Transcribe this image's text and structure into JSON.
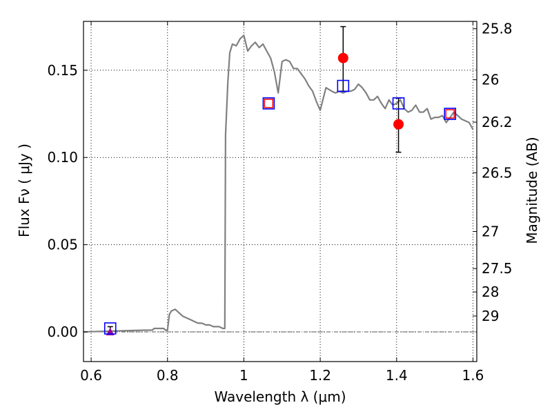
{
  "chart_data": {
    "type": "line",
    "xlabel": "Wavelength  λ (μm)",
    "ylabel": "Flux  Fν  ( μJy )",
    "ylabel_right": "Magnitude (AB)",
    "xlim": [
      0.58,
      1.61
    ],
    "ylim": [
      -0.017,
      0.178
    ],
    "grid": true,
    "x_ticks": [
      {
        "value": 0.6,
        "label": "0.6"
      },
      {
        "value": 0.8,
        "label": "0.8"
      },
      {
        "value": 1.0,
        "label": "1"
      },
      {
        "value": 1.2,
        "label": "1.2"
      },
      {
        "value": 1.4,
        "label": "1.4"
      },
      {
        "value": 1.6,
        "label": "1.6"
      }
    ],
    "y_ticks": [
      {
        "value": 0.0,
        "label": "0.00"
      },
      {
        "value": 0.05,
        "label": "0.05"
      },
      {
        "value": 0.1,
        "label": "0.10"
      },
      {
        "value": 0.15,
        "label": "0.15"
      }
    ],
    "right_ticks": [
      {
        "value": 25.8,
        "label": "25.8"
      },
      {
        "value": 26.0,
        "label": "26"
      },
      {
        "value": 26.2,
        "label": "26.2"
      },
      {
        "value": 26.5,
        "label": "26.5"
      },
      {
        "value": 27.0,
        "label": "27"
      },
      {
        "value": 27.5,
        "label": "27.5"
      },
      {
        "value": 28.0,
        "label": "28"
      },
      {
        "value": 29.0,
        "label": "29"
      }
    ],
    "model_spectrum": {
      "color": "#808080",
      "x": [
        0.58,
        0.74,
        0.745,
        0.76,
        0.765,
        0.77,
        0.79,
        0.795,
        0.8,
        0.805,
        0.81,
        0.82,
        0.83,
        0.84,
        0.85,
        0.86,
        0.87,
        0.88,
        0.89,
        0.9,
        0.91,
        0.92,
        0.93,
        0.935,
        0.945,
        0.95,
        0.952,
        0.958,
        0.963,
        0.97,
        0.98,
        0.99,
        1.0,
        1.01,
        1.02,
        1.03,
        1.04,
        1.05,
        1.06,
        1.07,
        1.08,
        1.09,
        1.095,
        1.1,
        1.11,
        1.12,
        1.13,
        1.14,
        1.15,
        1.16,
        1.17,
        1.18,
        1.19,
        1.2,
        1.215,
        1.23,
        1.24,
        1.25,
        1.26,
        1.27,
        1.28,
        1.29,
        1.3,
        1.31,
        1.32,
        1.33,
        1.34,
        1.35,
        1.36,
        1.37,
        1.38,
        1.39,
        1.4,
        1.41,
        1.42,
        1.43,
        1.44,
        1.45,
        1.46,
        1.47,
        1.48,
        1.49,
        1.5,
        1.51,
        1.52,
        1.53,
        1.54,
        1.55,
        1.56,
        1.57,
        1.58,
        1.59,
        1.6
      ],
      "y": [
        0.0,
        0.001,
        0.001,
        0.001,
        0.002,
        0.002,
        0.002,
        0.001,
        0.001,
        0.01,
        0.012,
        0.013,
        0.011,
        0.009,
        0.008,
        0.007,
        0.006,
        0.005,
        0.005,
        0.004,
        0.004,
        0.003,
        0.003,
        0.003,
        0.002,
        0.002,
        0.113,
        0.143,
        0.16,
        0.165,
        0.164,
        0.168,
        0.17,
        0.161,
        0.164,
        0.166,
        0.163,
        0.165,
        0.161,
        0.157,
        0.149,
        0.137,
        0.146,
        0.155,
        0.156,
        0.155,
        0.151,
        0.151,
        0.148,
        0.145,
        0.141,
        0.138,
        0.132,
        0.127,
        0.14,
        0.138,
        0.137,
        0.138,
        0.137,
        0.138,
        0.138,
        0.139,
        0.142,
        0.14,
        0.137,
        0.133,
        0.133,
        0.135,
        0.131,
        0.128,
        0.133,
        0.13,
        0.131,
        0.133,
        0.128,
        0.126,
        0.127,
        0.13,
        0.126,
        0.126,
        0.128,
        0.122,
        0.123,
        0.123,
        0.124,
        0.12,
        0.123,
        0.126,
        0.124,
        0.122,
        0.121,
        0.12,
        0.116
      ]
    },
    "photometry": [
      {
        "x": 1.26,
        "y": 0.157,
        "yerr_low": 0.019,
        "yerr_high": 0.018,
        "color": "#ff0000"
      },
      {
        "x": 1.405,
        "y": 0.119,
        "yerr_low": 0.016,
        "yerr_high": 0.015,
        "color": "#ff0000"
      }
    ],
    "synthetic_model": [
      {
        "x": 0.65,
        "y": 0.002
      },
      {
        "x": 1.065,
        "y": 0.131
      },
      {
        "x": 1.26,
        "y": 0.141
      },
      {
        "x": 1.405,
        "y": 0.131
      },
      {
        "x": 1.54,
        "y": 0.125
      }
    ],
    "synthetic_observed": [
      {
        "x": 1.065,
        "y": 0.131
      },
      {
        "x": 1.54,
        "y": 0.125
      }
    ],
    "upper_limit": {
      "x": 0.65,
      "y": 0.0,
      "yerr_high": 0.003,
      "color": "#990099"
    },
    "zero_line": 0.0
  }
}
